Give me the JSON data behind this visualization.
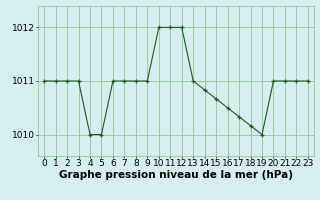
{
  "x": [
    0,
    1,
    2,
    3,
    4,
    5,
    6,
    7,
    8,
    9,
    10,
    11,
    12,
    13,
    14,
    15,
    16,
    17,
    18,
    19,
    20,
    21,
    22,
    23
  ],
  "y": [
    1011,
    1011,
    1011,
    1011,
    1010,
    1010,
    1011,
    1011,
    1011,
    1011,
    1012,
    1012,
    1012,
    1011,
    1010.833,
    1010.667,
    1010.5,
    1010.333,
    1010.167,
    1010,
    1011,
    1011,
    1011,
    1011
  ],
  "line_color": "#1e5c1e",
  "marker_color": "#1e5c1e",
  "bg_color": "#d6eef0",
  "grid_color": "#80c080",
  "ylabel_ticks": [
    1010,
    1011,
    1012
  ],
  "ylim": [
    1009.6,
    1012.4
  ],
  "xlim": [
    -0.5,
    23.5
  ],
  "xlabel": "Graphe pression niveau de la mer (hPa)",
  "tick_fontsize": 6.5,
  "xlabel_fontsize": 7.5
}
